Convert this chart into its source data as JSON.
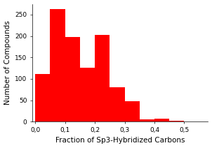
{
  "bar_lefts": [
    0.0,
    0.05,
    0.1,
    0.15,
    0.2,
    0.25,
    0.3,
    0.35,
    0.4,
    0.45,
    0.5
  ],
  "bar_heights": [
    112,
    263,
    198,
    126,
    203,
    80,
    47,
    6,
    7,
    2,
    1
  ],
  "bar_width": 0.05,
  "bar_color": "#ff0000",
  "bar_edgecolor": "#ff0000",
  "xlabel": "Fraction of Sp3-Hybridized Carbons",
  "ylabel": "Number of Compounds",
  "xlim": [
    -0.01,
    0.58
  ],
  "ylim": [
    0,
    275
  ],
  "xticks": [
    0.0,
    0.1,
    0.2,
    0.3,
    0.4,
    0.5
  ],
  "xtick_labels": [
    "0,0",
    "0,1",
    "0,2",
    "0,3",
    "0,4",
    "0,5"
  ],
  "yticks": [
    0,
    50,
    100,
    150,
    200,
    250
  ],
  "background_color": "#ffffff",
  "xlabel_fontsize": 7.5,
  "ylabel_fontsize": 7.5,
  "tick_fontsize": 6.5,
  "figwidth": 3.02,
  "figheight": 2.12,
  "dpi": 100
}
